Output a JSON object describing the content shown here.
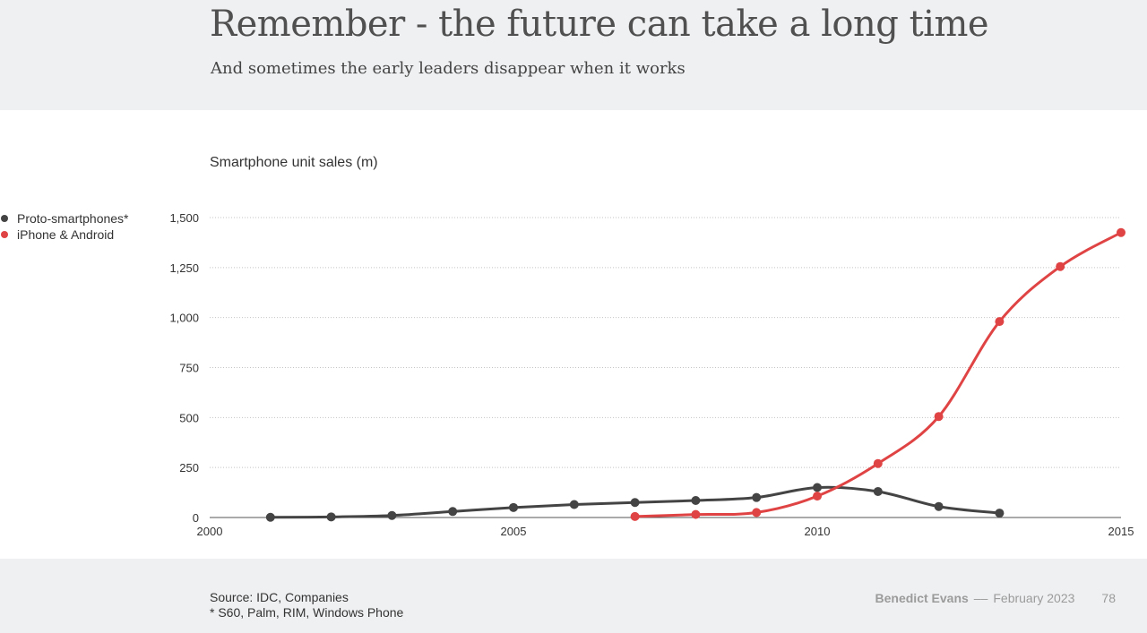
{
  "header": {
    "title": "Remember - the future can take a long time",
    "subtitle": "And sometimes the early leaders disappear when it works"
  },
  "footer": {
    "source_line1": "Source: IDC, Companies",
    "source_line2": "* S60, Palm, RIM, Windows Phone",
    "author": "Benedict Evans",
    "separator": "––",
    "date": "February 2023",
    "page": "78"
  },
  "chart_data": {
    "type": "line",
    "title": "Smartphone unit sales (m)",
    "xlabel": "",
    "ylabel": "",
    "xlim": [
      2000,
      2015
    ],
    "ylim": [
      0,
      1500
    ],
    "x_ticks": [
      2000,
      2005,
      2010,
      2015
    ],
    "x_tick_labels": [
      "2000",
      "2005",
      "2010",
      "2015"
    ],
    "y_ticks": [
      0,
      250,
      500,
      750,
      1000,
      1250,
      1500
    ],
    "y_tick_labels": [
      "0",
      "250",
      "500",
      "750",
      "1,000",
      "1,250",
      "1,500"
    ],
    "grid": "horizontal dotted",
    "legend_position": "left",
    "series": [
      {
        "name": "Proto-smartphones*",
        "color": "#444444",
        "x": [
          2001,
          2002,
          2003,
          2004,
          2005,
          2006,
          2007,
          2008,
          2009,
          2010,
          2011,
          2012,
          2013
        ],
        "values": [
          1,
          3,
          10,
          30,
          50,
          65,
          75,
          85,
          100,
          150,
          130,
          55,
          22
        ]
      },
      {
        "name": "iPhone & Android",
        "color": "#e04343",
        "x": [
          2007,
          2008,
          2009,
          2010,
          2011,
          2012,
          2013,
          2014,
          2015
        ],
        "values": [
          5,
          15,
          25,
          107,
          270,
          505,
          980,
          1255,
          1425
        ]
      }
    ]
  }
}
